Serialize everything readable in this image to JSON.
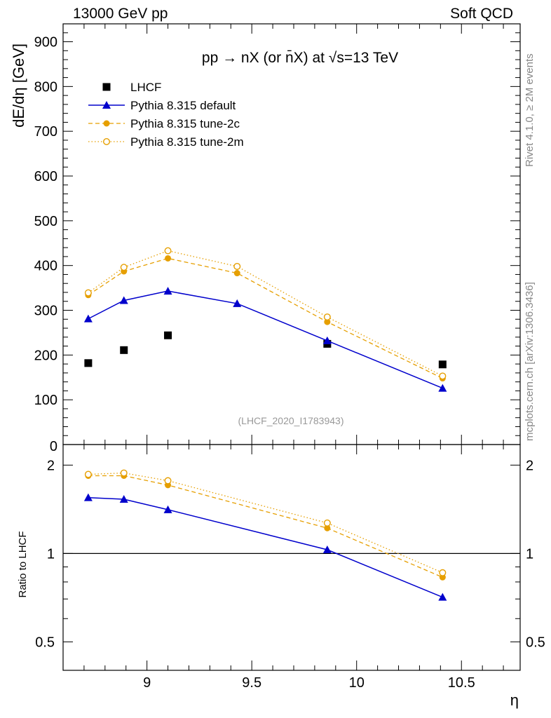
{
  "header": {
    "left": "13000 GeV pp",
    "right": "Soft QCD"
  },
  "side_labels": {
    "rivet": "Rivet 4.1.0, ≥ 2M events",
    "mcplots": "mcplots.cern.ch [arXiv:1306.3436]"
  },
  "colors": {
    "data": "#000000",
    "default": "#0000cc",
    "tune2c": "#e69f00",
    "tune2m": "#e69f00",
    "ref_line": "#000000",
    "watermark": "#999999"
  },
  "chart_data": [
    {
      "type": "scatter",
      "panel": "main",
      "title": "pp → nX (or n̄X) at √s=13 TeV",
      "ylabel": "dE/dη [GeV]",
      "xlabel": "",
      "xlim": [
        8.6,
        10.78
      ],
      "ylim": [
        0,
        940
      ],
      "yticks": [
        100,
        200,
        300,
        400,
        500,
        600,
        700,
        800,
        900
      ],
      "ytick_labels": [
        "100",
        "200",
        "300",
        "400",
        "500",
        "600",
        "700",
        "800",
        "900"
      ],
      "y_axis_zero_label": "0",
      "watermark": "(LHCF_2020_I1783943)",
      "legend_position": "top-left",
      "x": [
        8.72,
        8.89,
        9.1,
        9.43,
        9.86,
        10.41
      ],
      "series": [
        {
          "name": "LHCF",
          "style": "data",
          "values": [
            182,
            211,
            244,
            null,
            225,
            179
          ]
        },
        {
          "name": "Pythia 8.315 default",
          "style": "default",
          "values": [
            281,
            322,
            343,
            315,
            232,
            126
          ]
        },
        {
          "name": "Pythia 8.315 tune-2c",
          "style": "tune2c",
          "values": [
            334,
            387,
            416,
            383,
            274,
            148
          ]
        },
        {
          "name": "Pythia 8.315 tune-2m",
          "style": "tune2m",
          "values": [
            339,
            396,
            433,
            398,
            285,
            153
          ]
        }
      ]
    },
    {
      "type": "line",
      "panel": "ratio",
      "ylabel": "Ratio to LHCF",
      "xlabel": "η",
      "xlim": [
        8.6,
        10.78
      ],
      "ylim": [
        0.4,
        2.35
      ],
      "y_scale": "log",
      "yticks": [
        0.5,
        1,
        2
      ],
      "ytick_labels": [
        "0.5",
        "1",
        "2"
      ],
      "xticks": [
        9,
        9.5,
        10,
        10.5
      ],
      "xtick_labels": [
        "9",
        "9.5",
        "10",
        "10.5"
      ],
      "reference_line": 1,
      "x": [
        8.72,
        8.89,
        9.1,
        9.86,
        10.41
      ],
      "series": [
        {
          "name": "Pythia 8.315 default",
          "style": "default",
          "values": [
            1.55,
            1.53,
            1.41,
            1.03,
            0.71
          ]
        },
        {
          "name": "Pythia 8.315 tune-2c",
          "style": "tune2c",
          "values": [
            1.84,
            1.84,
            1.71,
            1.22,
            0.83
          ]
        },
        {
          "name": "Pythia 8.315 tune-2m",
          "style": "tune2m",
          "values": [
            1.86,
            1.88,
            1.77,
            1.27,
            0.86
          ]
        }
      ]
    }
  ]
}
